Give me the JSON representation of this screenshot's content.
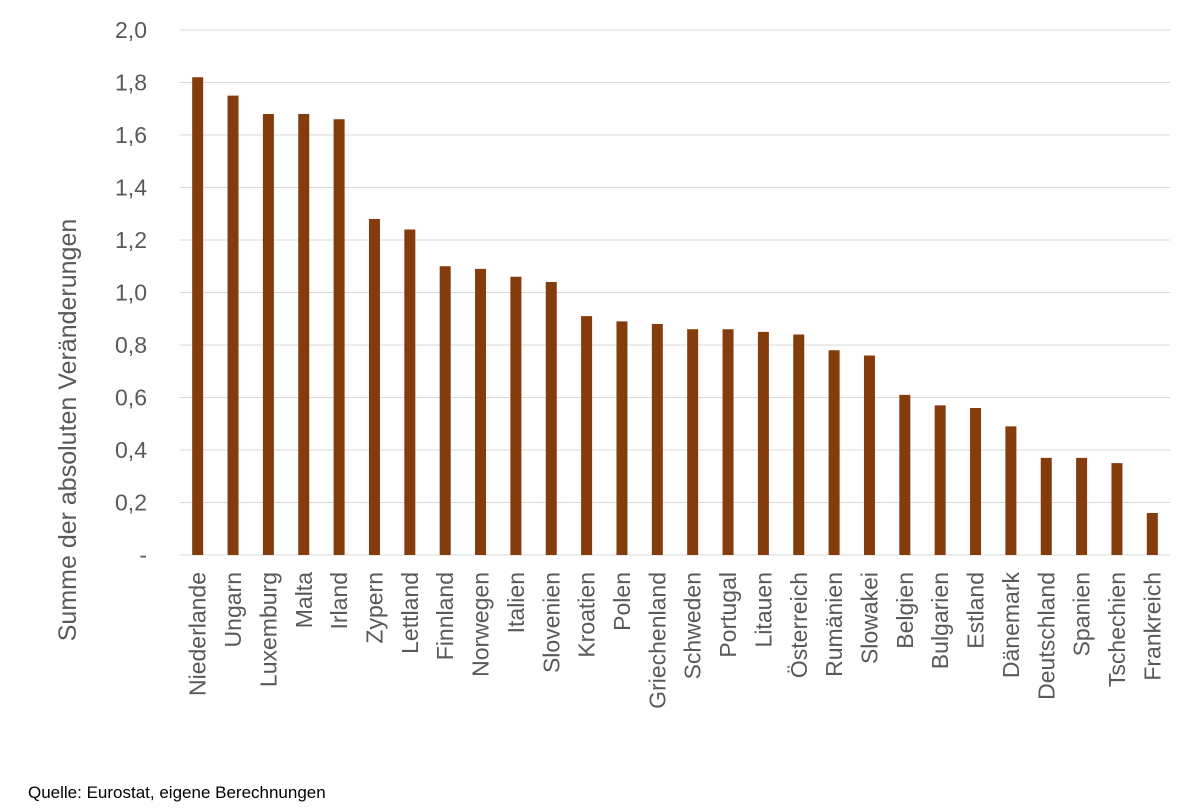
{
  "chart_data": {
    "type": "bar",
    "ylabel": "Summe der absoluten Veränderungen",
    "ylim": [
      0,
      2.0
    ],
    "yticks": [
      {
        "value": 0,
        "label": "-"
      },
      {
        "value": 0.2,
        "label": "0,2"
      },
      {
        "value": 0.4,
        "label": "0,4"
      },
      {
        "value": 0.6,
        "label": "0,6"
      },
      {
        "value": 0.8,
        "label": "0,8"
      },
      {
        "value": 1.0,
        "label": "1,0"
      },
      {
        "value": 1.2,
        "label": "1,2"
      },
      {
        "value": 1.4,
        "label": "1,4"
      },
      {
        "value": 1.6,
        "label": "1,6"
      },
      {
        "value": 1.8,
        "label": "1,8"
      },
      {
        "value": 2.0,
        "label": "2,0"
      }
    ],
    "grid": true,
    "bar_color": "#843C0C",
    "categories": [
      "Niederlande",
      "Ungarn",
      "Luxemburg",
      "Malta",
      "Irland",
      "Zypern",
      "Lettland",
      "Finnland",
      "Norwegen",
      "Italien",
      "Slovenien",
      "Kroatien",
      "Polen",
      "Griechenland",
      "Schweden",
      "Portugal",
      "Litauen",
      "Österreich",
      "Rumänien",
      "Slowakei",
      "Belgien",
      "Bulgarien",
      "Estland",
      "Dänemark",
      "Deutschland",
      "Spanien",
      "Tschechien",
      "Frankreich"
    ],
    "values": [
      1.82,
      1.75,
      1.68,
      1.68,
      1.66,
      1.28,
      1.24,
      1.1,
      1.09,
      1.06,
      1.04,
      0.91,
      0.89,
      0.88,
      0.86,
      0.86,
      0.85,
      0.84,
      0.78,
      0.76,
      0.61,
      0.57,
      0.56,
      0.49,
      0.37,
      0.37,
      0.35,
      0.16
    ]
  },
  "source": "Quelle: Eurostat, eigene Berechnungen"
}
